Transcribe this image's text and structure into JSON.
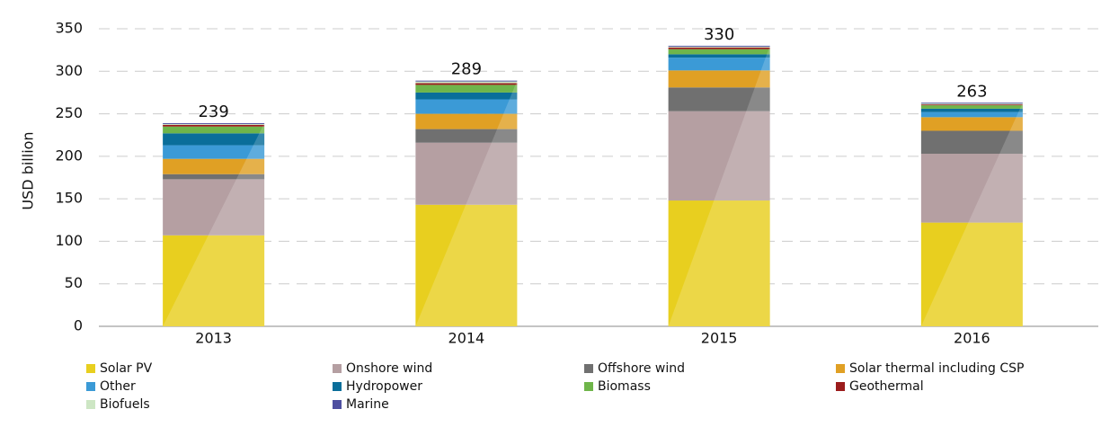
{
  "chart_data": {
    "type": "stacked_bar",
    "y_label": "USD billion",
    "categories": [
      "2013",
      "2014",
      "2015",
      "2016"
    ],
    "totals": [
      239,
      289,
      330,
      263
    ],
    "series": [
      {
        "name": "Solar PV",
        "color": "#e8cf1f",
        "values": [
          107,
          143,
          148,
          122
        ]
      },
      {
        "name": "Onshore wind",
        "color": "#b59fa2",
        "values": [
          66,
          73,
          105,
          81
        ]
      },
      {
        "name": "Offshore wind",
        "color": "#707070",
        "values": [
          6,
          16,
          28,
          27
        ]
      },
      {
        "name": "Solar thermal including CSP",
        "color": "#e0a024",
        "values": [
          18,
          18,
          20,
          16
        ]
      },
      {
        "name": "Other",
        "color": "#3b9ad6",
        "values": [
          16,
          17,
          15,
          6
        ]
      },
      {
        "name": "Hydropower",
        "color": "#0a6e9a",
        "values": [
          14,
          8,
          4,
          4
        ]
      },
      {
        "name": "Biomass",
        "color": "#6fb54a",
        "values": [
          8,
          9,
          6,
          4
        ]
      },
      {
        "name": "Geothermal",
        "color": "#9b1c1c",
        "values": [
          2,
          2,
          2,
          1
        ]
      },
      {
        "name": "Biofuels",
        "color": "#cde6c4",
        "values": [
          1,
          2,
          1,
          1
        ]
      },
      {
        "name": "Marine",
        "color": "#4e4fa0",
        "values": [
          1,
          1,
          1,
          1
        ]
      }
    ],
    "ylim": [
      0,
      350
    ],
    "yticks": [
      0,
      50,
      100,
      150,
      200,
      250,
      300,
      350
    ],
    "grid": true
  }
}
